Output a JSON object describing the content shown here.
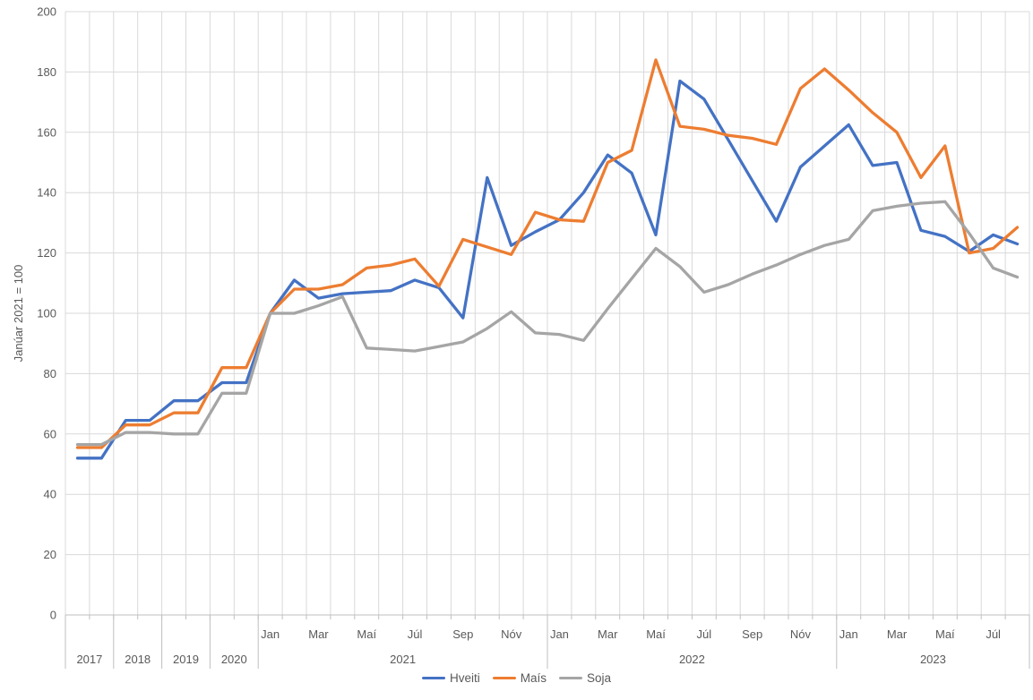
{
  "chart_data": {
    "type": "line",
    "title": "",
    "y_axis_title": "Janúar 2021 = 100",
    "ylim": [
      0,
      200
    ],
    "y_tick_step": 20,
    "y_tick_labels": [
      "0",
      "20",
      "40",
      "60",
      "80",
      "100",
      "120",
      "140",
      "160",
      "180",
      "200"
    ],
    "grid": true,
    "legend_position": "bottom",
    "point_count": 40,
    "x_axis": {
      "month_labels": [
        {
          "point": 8,
          "text": "Jan"
        },
        {
          "point": 10,
          "text": "Mar"
        },
        {
          "point": 12,
          "text": "Maí"
        },
        {
          "point": 14,
          "text": "Júl"
        },
        {
          "point": 16,
          "text": "Sep"
        },
        {
          "point": 18,
          "text": "Nóv"
        },
        {
          "point": 20,
          "text": "Jan"
        },
        {
          "point": 22,
          "text": "Mar"
        },
        {
          "point": 24,
          "text": "Maí"
        },
        {
          "point": 26,
          "text": "Júl"
        },
        {
          "point": 28,
          "text": "Sep"
        },
        {
          "point": 30,
          "text": "Nóv"
        },
        {
          "point": 32,
          "text": "Jan"
        },
        {
          "point": 34,
          "text": "Mar"
        },
        {
          "point": 36,
          "text": "Maí"
        },
        {
          "point": 38,
          "text": "Júl"
        }
      ],
      "year_groups": [
        {
          "label": "2017",
          "points": 2
        },
        {
          "label": "2018",
          "points": 2
        },
        {
          "label": "2019",
          "points": 2
        },
        {
          "label": "2020",
          "points": 2
        },
        {
          "label": "2021",
          "points": 12
        },
        {
          "label": "2022",
          "points": 12
        },
        {
          "label": "2023",
          "points": 8
        }
      ]
    },
    "series": [
      {
        "name": "Hveiti",
        "color": "#4472C4",
        "values": [
          52,
          52,
          64.5,
          64.5,
          71,
          71,
          77,
          77,
          100,
          111,
          105,
          106.5,
          107,
          107.5,
          111,
          108.5,
          98.5,
          145,
          122.5,
          127,
          131,
          140,
          152.5,
          146.5,
          126,
          177,
          171,
          157.5,
          144,
          130.5,
          148.5,
          155.5,
          162.5,
          149,
          150,
          127.5,
          125.5,
          120.5,
          126,
          123
        ]
      },
      {
        "name": "Maís",
        "color": "#ED7D31",
        "values": [
          55.5,
          55.5,
          63,
          63,
          67,
          67,
          82,
          82,
          100,
          108,
          108,
          109.5,
          115,
          116,
          118,
          109,
          124.5,
          122,
          119.5,
          133.5,
          131,
          130.5,
          150,
          154,
          184,
          162,
          161,
          159,
          158,
          156,
          174.5,
          181,
          174,
          166.5,
          160,
          145,
          155.5,
          120,
          121.5,
          128.5
        ]
      },
      {
        "name": "Soja",
        "color": "#A5A5A5",
        "values": [
          56.5,
          56.5,
          60.5,
          60.5,
          60,
          60,
          73.5,
          73.5,
          100,
          100,
          102.5,
          105.5,
          88.5,
          88,
          87.5,
          89,
          90.5,
          95,
          100.5,
          93.5,
          93,
          91,
          101.5,
          111.5,
          121.5,
          115.5,
          107,
          109.5,
          113,
          116,
          119.5,
          122.5,
          124.5,
          134,
          135.5,
          136.5,
          137,
          126.5,
          115,
          112
        ]
      }
    ],
    "colors": {
      "gridline": "#D9D9D9",
      "axis_line": "#BFBFBF",
      "tick_text": "#595959"
    }
  }
}
